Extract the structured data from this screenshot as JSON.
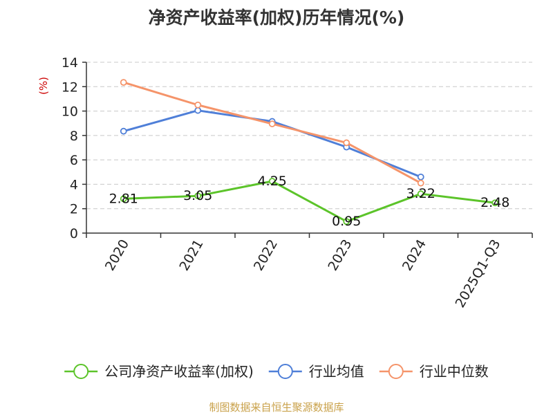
{
  "chart_data": {
    "type": "line",
    "title": "净资产收益率(加权)历年情况(%)",
    "ylabel": "(%)",
    "xlabel": "",
    "categories": [
      "2020",
      "2021",
      "2022",
      "2023",
      "2024",
      "2025Q1-Q3"
    ],
    "ylim": [
      0,
      14
    ],
    "yticks": [
      0,
      2,
      4,
      6,
      8,
      10,
      12,
      14
    ],
    "grid": true,
    "legend_position": "bottom",
    "series": [
      {
        "name": "公司净资产收益率(加权)",
        "color": "#5cc42a",
        "values": [
          2.81,
          3.05,
          4.25,
          0.95,
          3.22,
          2.48
        ],
        "data_labels": [
          "2.81",
          "3.05",
          "4.25",
          "0.95",
          "3.22",
          "2.48"
        ]
      },
      {
        "name": "行业均值",
        "color": "#4f7fd8",
        "values": [
          8.35,
          10.05,
          9.15,
          7.05,
          4.6,
          null
        ]
      },
      {
        "name": "行业中位数",
        "color": "#f5946a",
        "values": [
          12.35,
          10.5,
          8.95,
          7.4,
          4.1,
          null
        ]
      }
    ],
    "source": "制图数据来自恒生聚源数据库"
  }
}
